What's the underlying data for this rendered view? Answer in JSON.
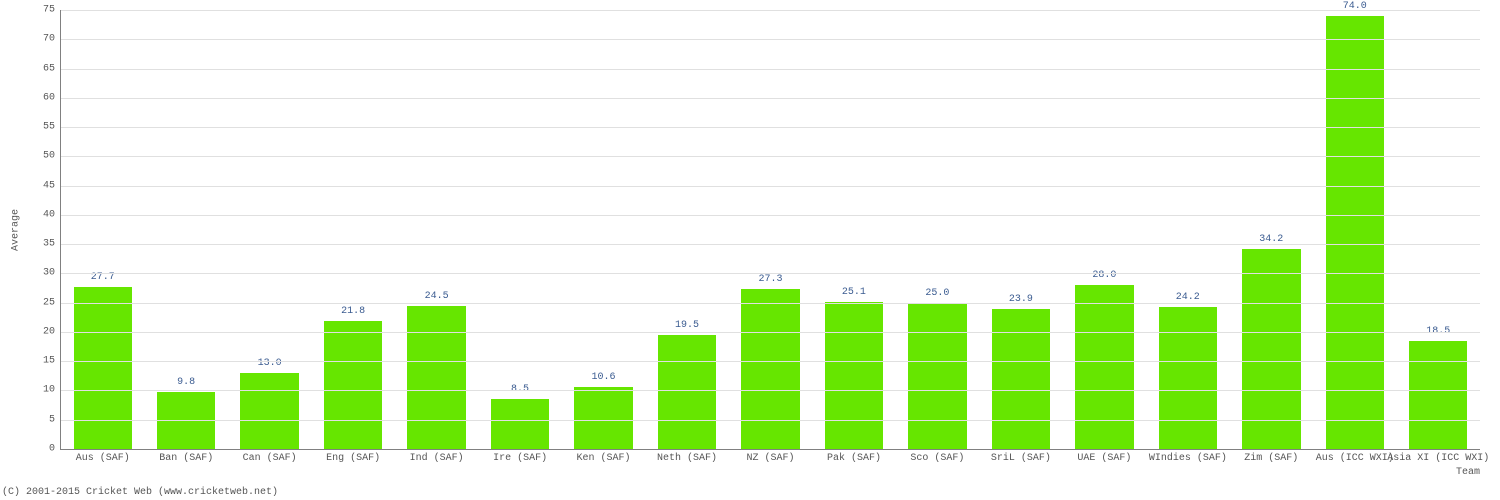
{
  "chart": {
    "type": "bar",
    "xlabel": "Team",
    "ylabel": "Average",
    "ylim": [
      0,
      75
    ],
    "ytick_step": 5,
    "bar_color": "#66e600",
    "grid_color": "#e0e0e0",
    "axis_line_color": "#808080",
    "background_color": "#ffffff",
    "label_fontsize": 10,
    "value_label_color": "#3a5b90",
    "tick_label_color": "#555555",
    "font_family": "Courier New, monospace",
    "bar_width": 0.7,
    "categories": [
      "Aus (SAF)",
      "Ban (SAF)",
      "Can (SAF)",
      "Eng (SAF)",
      "Ind (SAF)",
      "Ire (SAF)",
      "Ken (SAF)",
      "Neth (SAF)",
      "NZ (SAF)",
      "Pak (SAF)",
      "Sco (SAF)",
      "SriL (SAF)",
      "UAE (SAF)",
      "WIndies (SAF)",
      "Zim (SAF)",
      "Aus (ICC WXI)",
      "Asia XI (ICC WXI)"
    ],
    "values": [
      27.7,
      9.8,
      13.0,
      21.8,
      24.5,
      8.5,
      10.6,
      19.5,
      27.3,
      25.1,
      25.0,
      23.9,
      28.0,
      24.2,
      34.2,
      74.0,
      18.5
    ]
  },
  "footer_text": "(C) 2001-2015 Cricket Web (www.cricketweb.net)"
}
